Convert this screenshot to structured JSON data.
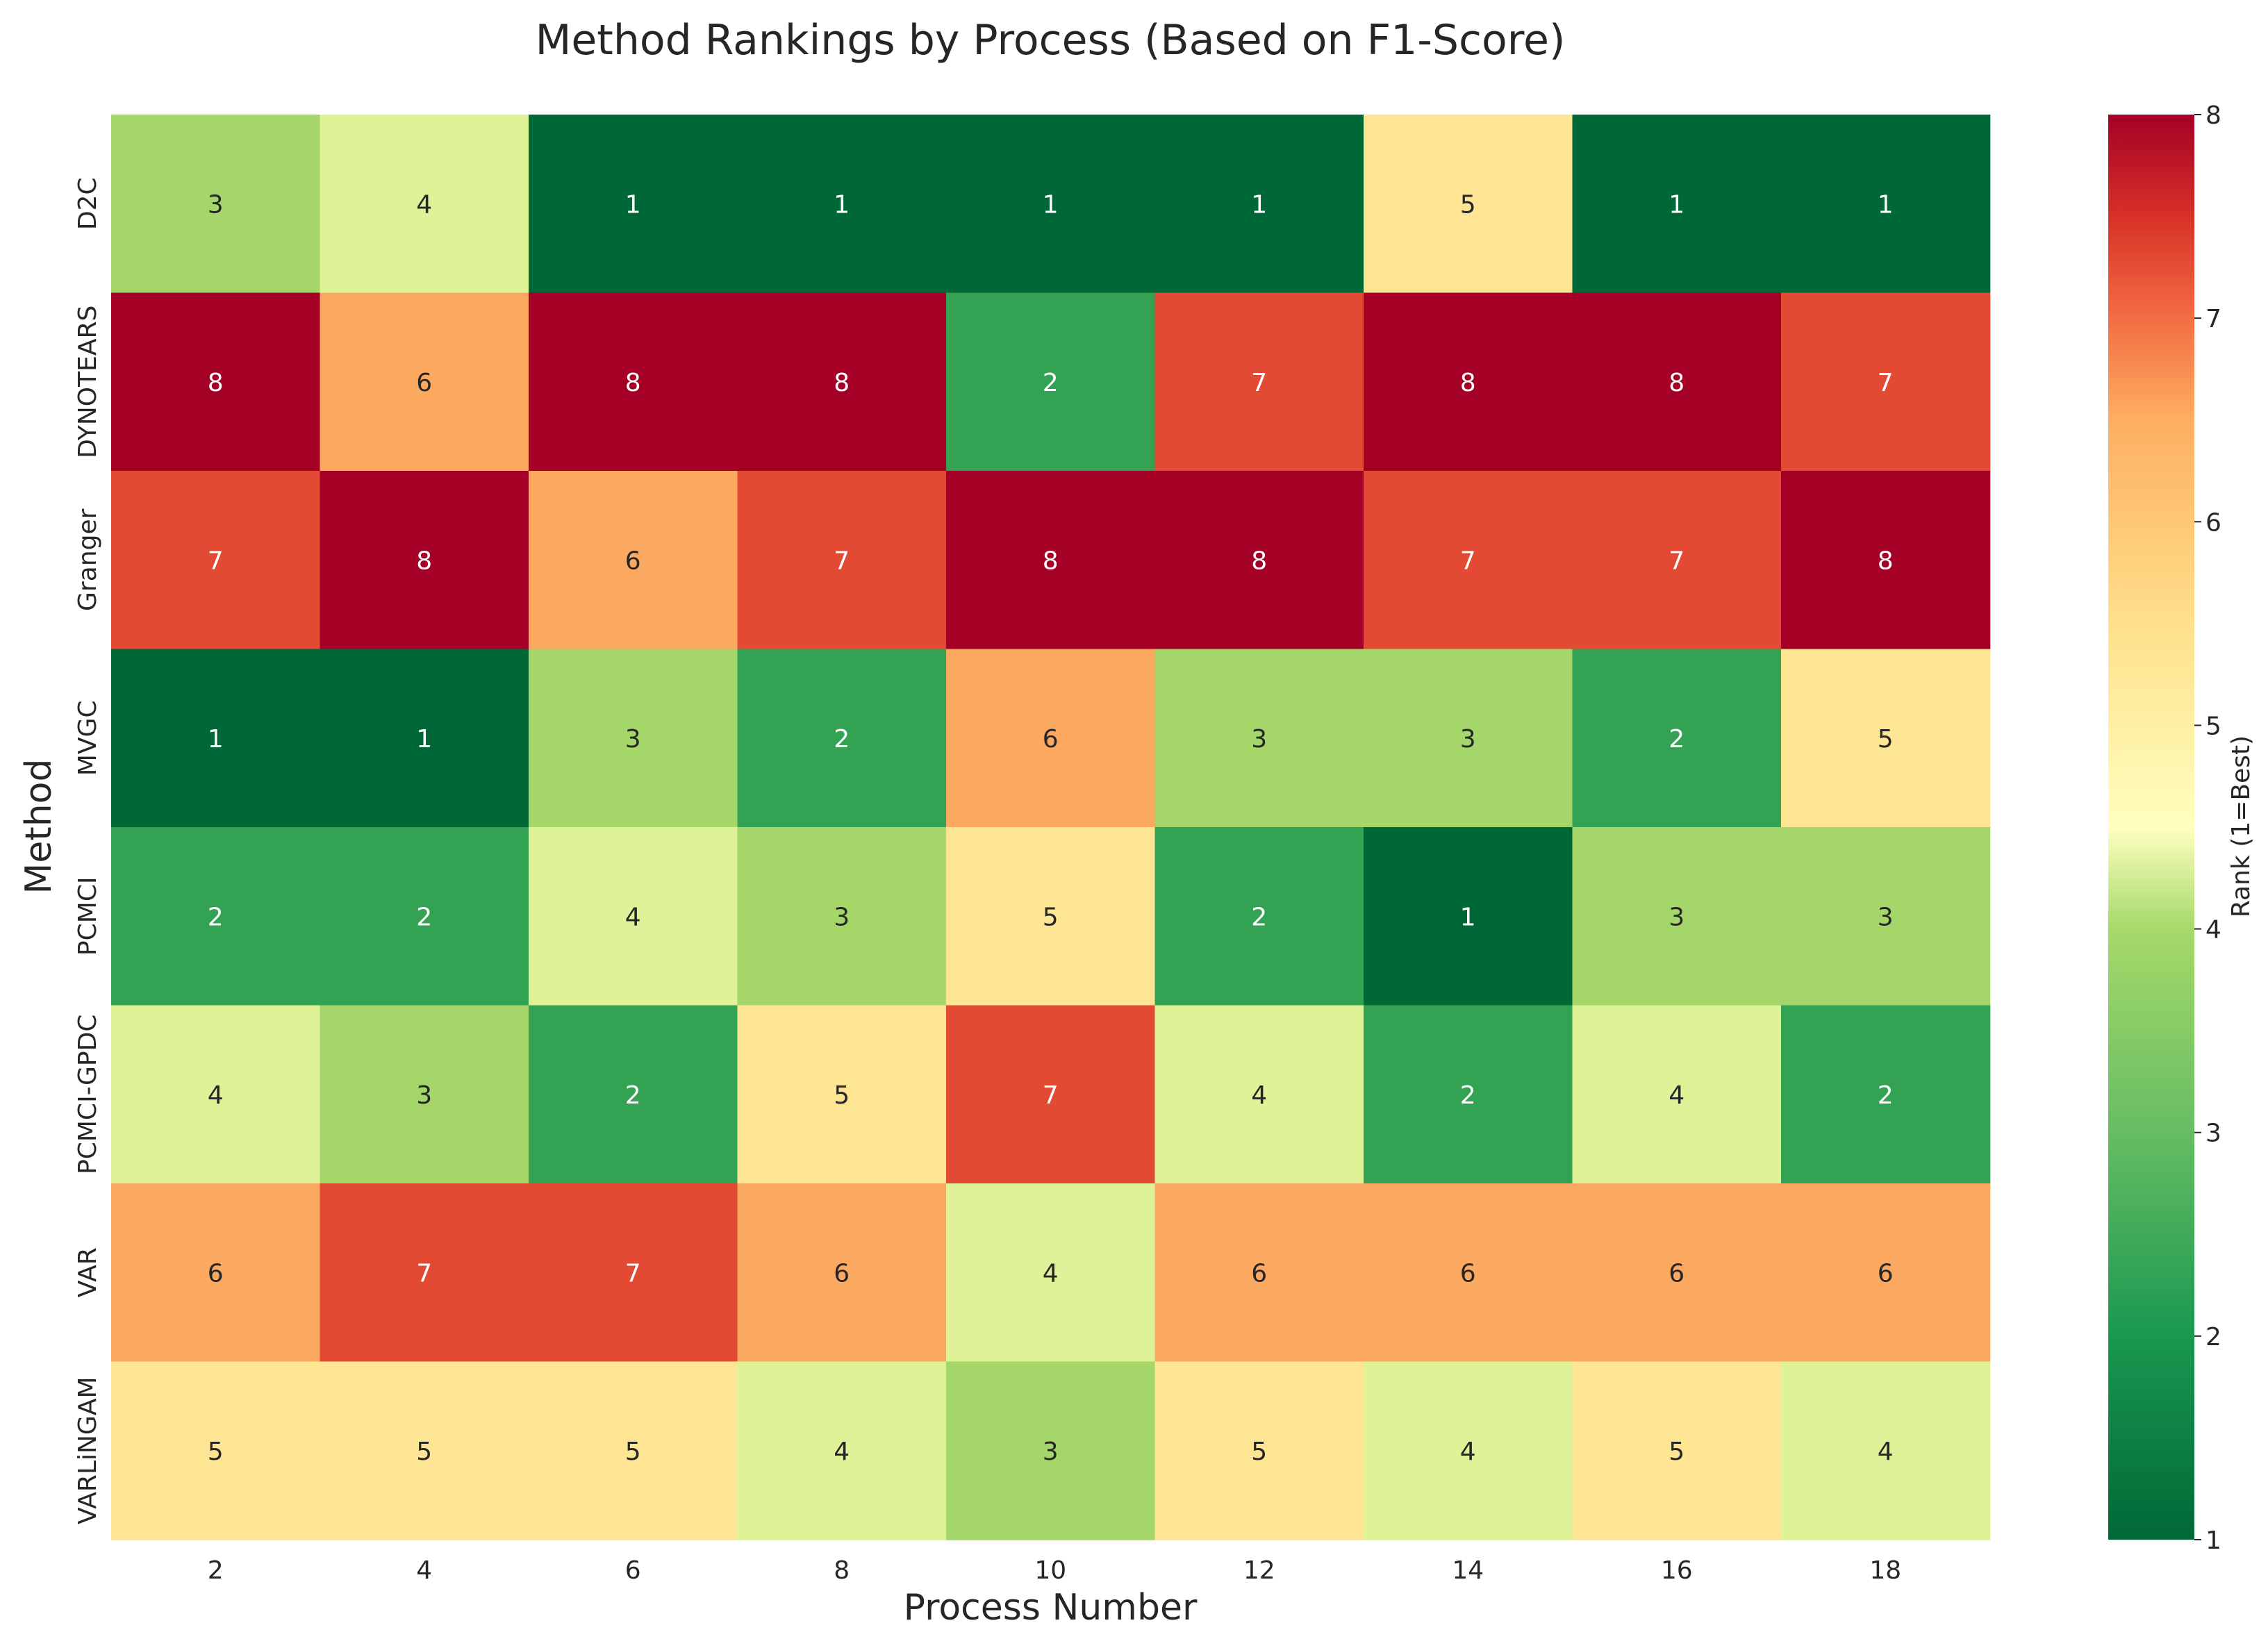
{
  "chart_data": {
    "type": "heatmap",
    "title": "Method Rankings by Process (Based on F1-Score)",
    "xlabel": "Process Number",
    "ylabel": "Method",
    "x_categories": [
      "2",
      "4",
      "6",
      "8",
      "10",
      "12",
      "14",
      "16",
      "18"
    ],
    "y_categories": [
      "D2C",
      "DYNOTEARS",
      "Granger",
      "MVGC",
      "PCMCI",
      "PCMCI-GPDC",
      "VAR",
      "VARLiNGAM"
    ],
    "values": [
      [
        3,
        4,
        1,
        1,
        1,
        1,
        5,
        1,
        1
      ],
      [
        8,
        6,
        8,
        8,
        2,
        7,
        8,
        8,
        7
      ],
      [
        7,
        8,
        6,
        7,
        8,
        8,
        7,
        7,
        8
      ],
      [
        1,
        1,
        3,
        2,
        6,
        3,
        3,
        2,
        5
      ],
      [
        2,
        2,
        4,
        3,
        5,
        2,
        1,
        3,
        3
      ],
      [
        4,
        3,
        2,
        5,
        7,
        4,
        2,
        4,
        2
      ],
      [
        6,
        7,
        7,
        6,
        4,
        6,
        6,
        6,
        6
      ],
      [
        5,
        5,
        5,
        4,
        3,
        5,
        4,
        5,
        4
      ]
    ],
    "colorbar": {
      "label": "Rank (1=Best)",
      "range": [
        1,
        8
      ],
      "ticks": [
        "1",
        "2",
        "3",
        "4",
        "5",
        "6",
        "7",
        "8"
      ]
    },
    "colors": {
      "1": "#006837",
      "2": "#33a353",
      "3": "#a5d66a",
      "4": "#e0f297",
      "5": "#fee593",
      "6": "#fba860",
      "7": "#e34a33",
      "8": "#a50026"
    }
  }
}
